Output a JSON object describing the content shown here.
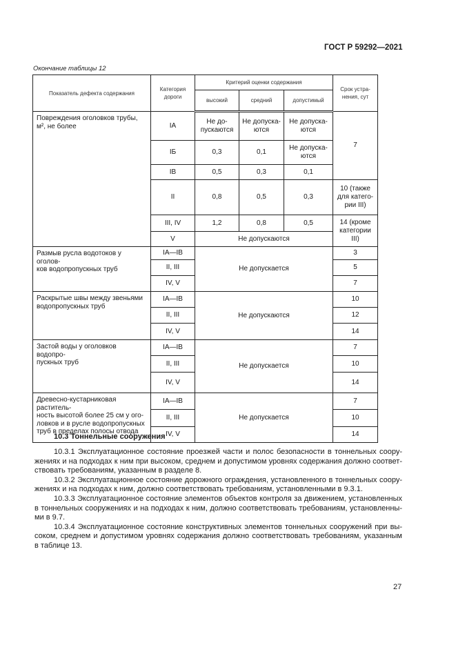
{
  "header": {
    "doc_id": "ГОСТ Р 59292—2021"
  },
  "table": {
    "caption": "Окончание таблицы 12",
    "headers": {
      "defect": "Показатель дефекта содержания",
      "category": "Категория\nдороги",
      "criteria": "Критерий оценки содержания",
      "high": "высокий",
      "medium": "средний",
      "acceptable": "допустимый",
      "term": "Срок устра-\nнения, сут"
    },
    "group1": {
      "defect": "Повреждения оголовков трубы, м², не более",
      "rows": [
        {
          "category": "IA",
          "high": "Не до-\nпускаются",
          "medium": "Не допуска-\nются",
          "acceptable": "Не допуска-\nются"
        },
        {
          "category": "IБ",
          "high": "0,3",
          "medium": "0,1",
          "acceptable": "Не допуска-\nются"
        },
        {
          "category": "IB",
          "high": "0,5",
          "medium": "0,3",
          "acceptable": "0,1"
        },
        {
          "category": "II",
          "high": "0,8",
          "medium": "0,5",
          "acceptable": "0,3"
        },
        {
          "category": "III, IV",
          "high": "1,2",
          "medium": "0,8",
          "acceptable": "0,5"
        },
        {
          "category": "V",
          "merged": "Не допускаются"
        }
      ],
      "terms": [
        "7",
        "10 (также\nдля катего-\nрии III)",
        "14 (кроме\nкатегории\nIII)"
      ]
    },
    "groups": [
      {
        "defect": "Размыв русла водотоков у оголов-\nков водопропускных труб",
        "criteria": "Не допускается",
        "categories": [
          "IA—IB",
          "II, III",
          "IV, V"
        ],
        "terms": [
          "3",
          "5",
          "7"
        ]
      },
      {
        "defect": "Раскрытые швы между звеньями\nводопропускных труб",
        "criteria": "Не допускаются",
        "categories": [
          "IA—IB",
          "II, III",
          "IV, V"
        ],
        "terms": [
          "10",
          "12",
          "14"
        ]
      },
      {
        "defect": "Застой воды у оголовков водопро-\nпускных труб",
        "criteria": "Не допускается",
        "categories": [
          "IA—IB",
          "II, III",
          "IV, V"
        ],
        "terms": [
          "7",
          "10",
          "14"
        ]
      },
      {
        "defect": "Древесно-кустарниковая раститель-\nность высотой более 25 см у ого-\nловков и в русле водопропускных\nтруб в пределах полосы отвода",
        "criteria": "Не допускается",
        "categories": [
          "IA—IB",
          "II, III",
          "IV, V"
        ],
        "terms": [
          "7",
          "10",
          "14"
        ]
      }
    ]
  },
  "section": {
    "heading": "10.3 Тоннельные сооружения",
    "paragraphs": [
      {
        "lines": [
          "10.3.1 Эксплуатационное состояние проезжей части и полос безопасности в тоннельных соору-",
          "жениях и на подходах к ним при высоком, среднем и допустимом уровнях содержания должно соответ-",
          "ствовать требованиям, указанным в разделе 8."
        ]
      },
      {
        "lines": [
          "10.3.2 Эксплуатационное состояние дорожного ограждения, установленного в тоннельных соору-",
          "жениях и на подходах к ним, должно соответствовать требованиям, установленными в 9.3.1."
        ]
      },
      {
        "lines": [
          "10.3.3 Эксплуатационное состояние элементов объектов контроля за движением, установленных",
          "в тоннельных сооружениях и на подходах к ним, должно соответствовать требованиям, установленны-",
          "ми в 9.7."
        ]
      },
      {
        "lines": [
          "10.3.4 Эксплуатационное состояние конструктивных элементов тоннельных сооружений при вы-",
          "соком, среднем и допустимом уровнях содержания должно соответствовать требованиям, указанным",
          "в таблице 13."
        ]
      }
    ]
  },
  "page_number": "27"
}
